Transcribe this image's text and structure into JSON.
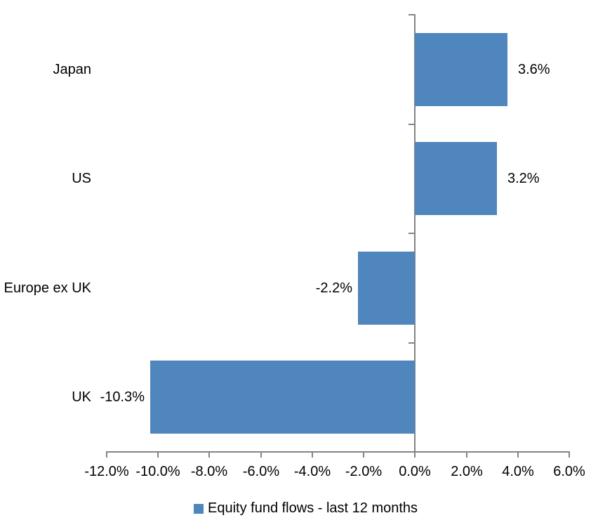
{
  "chart_data": {
    "type": "bar",
    "orientation": "horizontal",
    "title": "",
    "xlabel": "",
    "ylabel": "",
    "categories": [
      "Japan",
      "US",
      "Europe ex UK",
      "UK"
    ],
    "series": [
      {
        "name": "Equity fund flows - last 12 months",
        "values": [
          3.6,
          3.2,
          -2.2,
          -10.3
        ],
        "data_labels": [
          "3.6%",
          "3.2%",
          "-2.2%",
          "-10.3%"
        ]
      }
    ],
    "xlim": [
      -12,
      6
    ],
    "x_ticks": [
      -12,
      -10,
      -8,
      -6,
      -4,
      -2,
      0,
      2,
      4,
      6
    ],
    "x_tick_labels": [
      "-12.0%",
      "-10.0%",
      "-8.0%",
      "-6.0%",
      "-4.0%",
      "-2.0%",
      "0.0%",
      "2.0%",
      "4.0%",
      "6.0%"
    ],
    "grid": false,
    "legend_position": "bottom",
    "bar_color": "#4E86BD",
    "axis_color": "#848484",
    "text_color": "#000000",
    "background_color": "#FFFFFF"
  },
  "legend": {
    "label": "Equity fund flows - last 12 months"
  }
}
